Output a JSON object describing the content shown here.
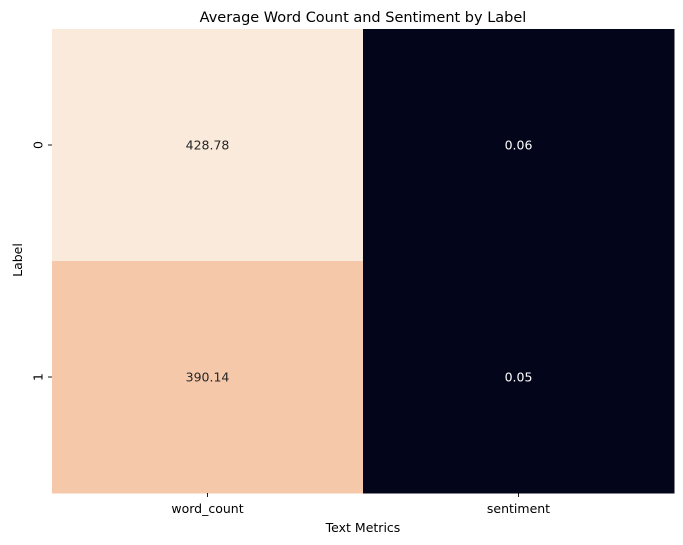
{
  "chart_data": {
    "type": "heatmap",
    "title": "Average Word Count and Sentiment by Label",
    "xlabel": "Text Metrics",
    "ylabel": "Label",
    "x_categories": [
      "word_count",
      "sentiment"
    ],
    "y_categories": [
      "0",
      "1"
    ],
    "values": [
      [
        428.78,
        0.06
      ],
      [
        390.14,
        0.05
      ]
    ],
    "value_labels": [
      [
        "428.78",
        "0.06"
      ],
      [
        "390.14",
        "0.05"
      ]
    ],
    "cell_colors": [
      [
        "#faeadc",
        "#03051a"
      ],
      [
        "#f6c8aa",
        "#03051a"
      ]
    ],
    "annotation_colors": [
      [
        "#262626",
        "#ffffff"
      ],
      [
        "#262626",
        "#ffffff"
      ]
    ],
    "colorbar": false,
    "grid": false
  }
}
